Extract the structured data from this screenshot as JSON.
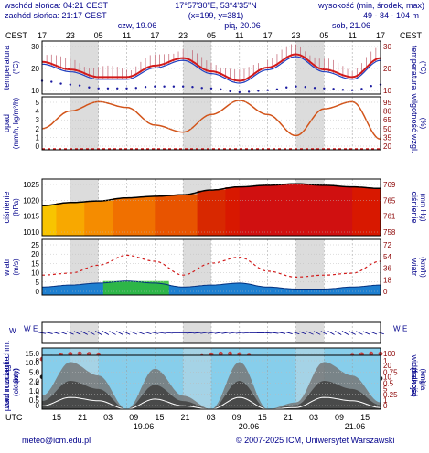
{
  "header": {
    "sunrise": "wschód słońca: 04:21 CEST",
    "sunset": "zachód słońca: 21:17 CEST",
    "coords": "17°57'30\"E, 53°4'35\"N",
    "grid": "(x=199, y=381)",
    "elevation_label": "wysokość (min, środek, max)",
    "elevation_values": "49 - 84 - 104 m",
    "tz_left": "CEST",
    "tz_right": "CEST",
    "days": [
      {
        "label": "czw, 19.06"
      },
      {
        "label": "pią, 20.06"
      },
      {
        "label": "sob, 21.06"
      }
    ],
    "hours_top": [
      "17",
      "23",
      "05",
      "11",
      "17",
      "23",
      "05",
      "11",
      "17",
      "23",
      "05",
      "11",
      "17"
    ]
  },
  "footer": {
    "utc": "UTC",
    "hours_bottom": [
      "15",
      "21",
      "03",
      "09",
      "15",
      "21",
      "03",
      "09",
      "15",
      "21",
      "03",
      "09",
      "15"
    ],
    "dates": [
      "19.06",
      "20.06",
      "21.06"
    ],
    "email": "meteo@icm.edu.pl",
    "copyright": "© 2007-2025 ICM, Uniwersytet Warszawski"
  },
  "colors": {
    "temp_line": "#d21a1a",
    "dewpoint": "#1a1aa0",
    "precip_line": "#d2541a",
    "pressure_line": "#000000",
    "wind_line": "#d21a1a",
    "sky": "#87ceeb",
    "band": "#dcdcdc"
  },
  "chart_data": [
    {
      "type": "line",
      "panel": "temperature",
      "ylabel_left": [
        "temperatura",
        "(°C)"
      ],
      "ylabel_right": [
        "temperatura",
        "(°C)"
      ],
      "yticks_left": [
        "30",
        "20",
        "10"
      ],
      "yticks_right": [
        "30",
        "20",
        "10"
      ],
      "ylim": [
        5,
        33
      ],
      "x_hours": [
        0,
        6,
        12,
        18,
        24,
        30,
        36,
        42,
        48,
        54,
        60,
        66,
        72
      ],
      "series": [
        {
          "role": "temperature",
          "values": [
            22,
            18,
            14,
            14,
            20,
            24,
            17,
            12,
            19,
            26,
            18,
            14,
            24
          ]
        },
        {
          "role": "dewpoint",
          "values": [
            12,
            10,
            8,
            8,
            9,
            9,
            8,
            6,
            7,
            9,
            8,
            7,
            10
          ]
        }
      ]
    },
    {
      "type": "line",
      "panel": "precip_humidity",
      "ylabel_left": [
        "opad",
        "(mm/h, kg/m²/h)"
      ],
      "ylabel_right": [
        "wilgotność wzgl.",
        "(%)"
      ],
      "yticks_left": [
        "5",
        "4",
        "3",
        "2",
        "1",
        "0"
      ],
      "yticks_right": [
        "95",
        "80",
        "65",
        "50",
        "35",
        "20"
      ],
      "ylim": [
        20,
        95
      ],
      "x_hours": [
        0,
        6,
        12,
        18,
        24,
        30,
        36,
        42,
        48,
        54,
        60,
        66,
        72
      ],
      "series": [
        {
          "role": "humidity",
          "values": [
            50,
            75,
            88,
            80,
            55,
            45,
            70,
            90,
            70,
            40,
            78,
            88,
            35
          ]
        }
      ]
    },
    {
      "type": "area",
      "panel": "pressure",
      "ylabel_left": [
        "ciśnienie",
        "(hPa)"
      ],
      "ylabel_right": [
        "ciśnienie",
        "(mm Hg)"
      ],
      "yticks_left": [
        "1025",
        "1020",
        "1015",
        "1010"
      ],
      "yticks_right": [
        "769",
        "765",
        "761",
        "758"
      ],
      "ylim": [
        1010,
        1028
      ],
      "x_hours": [
        0,
        6,
        12,
        18,
        24,
        30,
        36,
        42,
        48,
        54,
        60,
        66,
        72
      ],
      "series": [
        {
          "role": "pressure",
          "values": [
            1019.5,
            1020.5,
            1021,
            1022,
            1022.5,
            1023,
            1024.5,
            1025.5,
            1026,
            1026.5,
            1026,
            1025.5,
            1025
          ]
        }
      ]
    },
    {
      "type": "line",
      "panel": "wind",
      "ylabel_left": [
        "wiatr",
        "(m/s)"
      ],
      "ylabel_right": [
        "wiatr",
        "(km/h)"
      ],
      "yticks_left": [
        "25",
        "20",
        "15",
        "10",
        "5",
        "0"
      ],
      "yticks_right": [
        "72",
        "54",
        "36",
        "18",
        "0"
      ],
      "ylim": [
        0,
        28
      ],
      "x_hours": [
        0,
        6,
        12,
        18,
        24,
        30,
        36,
        42,
        48,
        54,
        60,
        66,
        72
      ],
      "series": [
        {
          "role": "gusts",
          "values": [
            10,
            11,
            15,
            20,
            17,
            10,
            16,
            19,
            12,
            9,
            10,
            11,
            17
          ]
        },
        {
          "role": "mean",
          "values": [
            4,
            5,
            6,
            7,
            6,
            4,
            5,
            6,
            4,
            3,
            3,
            4,
            5
          ]
        }
      ]
    },
    {
      "type": "scatter",
      "panel": "clouds_visibility",
      "ylabel_left": [
        "pion. rozciągł. chm.",
        "(km)"
      ],
      "ylabel_right": [
        "widzialność",
        "(km)"
      ],
      "yticks_left": [
        "15.0",
        "10.0",
        "5.0",
        "2.0",
        "1.0",
        "0.5"
      ],
      "yticks_right": [
        "100",
        "20",
        "10",
        "5",
        "1"
      ],
      "ylim": [
        0,
        15
      ]
    },
    {
      "type": "area",
      "panel": "cloudiness",
      "ylabel_left": [
        "zachmurzenie",
        "(oktanty)"
      ],
      "ylabel_right": [
        "(frakcja)",
        "mgła"
      ],
      "yticks_left": [
        "8",
        "6",
        "4",
        "2",
        "0"
      ],
      "yticks_right": [
        "1",
        "0.75",
        "0.5",
        "0.25",
        "0"
      ],
      "ylim": [
        0,
        8
      ],
      "x_hours": [
        0,
        6,
        12,
        18,
        24,
        30,
        36,
        42,
        48,
        54,
        60,
        66,
        72
      ],
      "series": [
        {
          "role": "total",
          "values": [
            2,
            7,
            5,
            0,
            6,
            2,
            0,
            7,
            0,
            1,
            7,
            5,
            1
          ]
        }
      ]
    },
    {
      "type": "scatter",
      "panel": "wind_direction",
      "ylabel_left": [
        "W E"
      ],
      "ylabel_right": [
        "W E"
      ]
    }
  ]
}
